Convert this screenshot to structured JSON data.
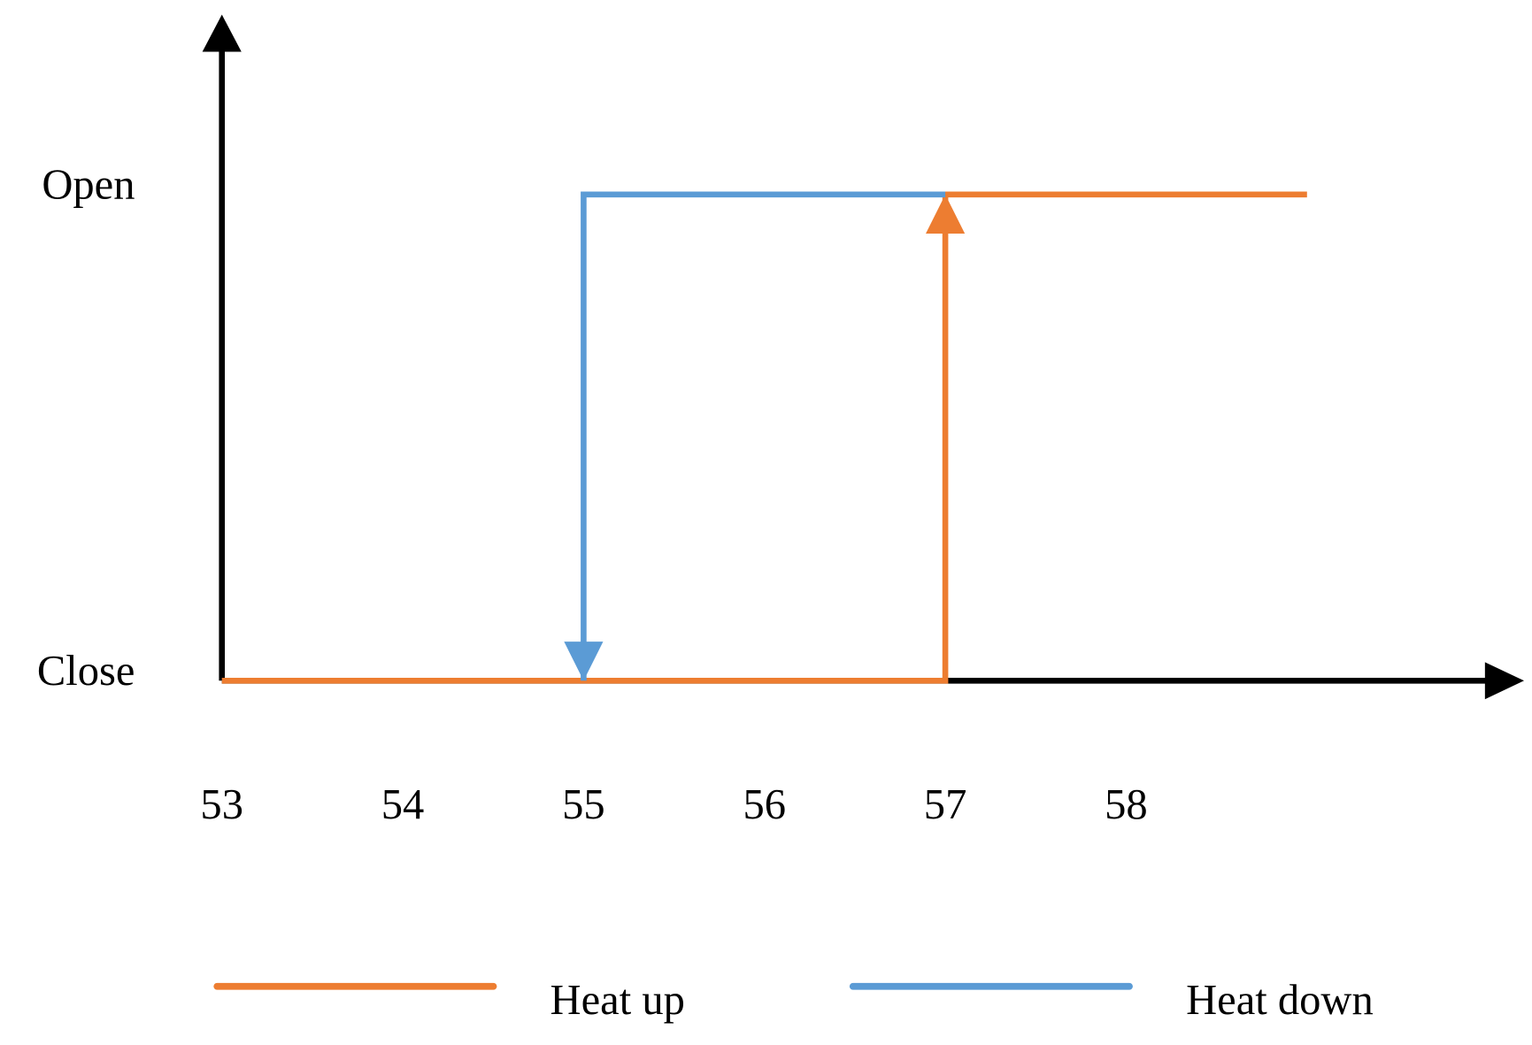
{
  "chart_data": {
    "type": "line",
    "xlim": [
      53,
      60.2
    ],
    "xticks": [
      53,
      54,
      55,
      56,
      57,
      58
    ],
    "ylim": [
      0,
      1.37
    ],
    "yticks": [
      {
        "value": 1,
        "label": "Open"
      },
      {
        "value": 0,
        "label": "Close"
      }
    ],
    "grid": false,
    "legend": "bottom",
    "series": [
      {
        "name": "Heat up",
        "color": "#ED7D31",
        "x": [
          53,
          57,
          57,
          59
        ],
        "values": [
          0,
          0,
          1,
          1
        ]
      },
      {
        "name": "Heat down",
        "color": "#5B9BD5",
        "x": [
          57,
          55,
          55
        ],
        "values": [
          1,
          1,
          0
        ]
      }
    ]
  }
}
